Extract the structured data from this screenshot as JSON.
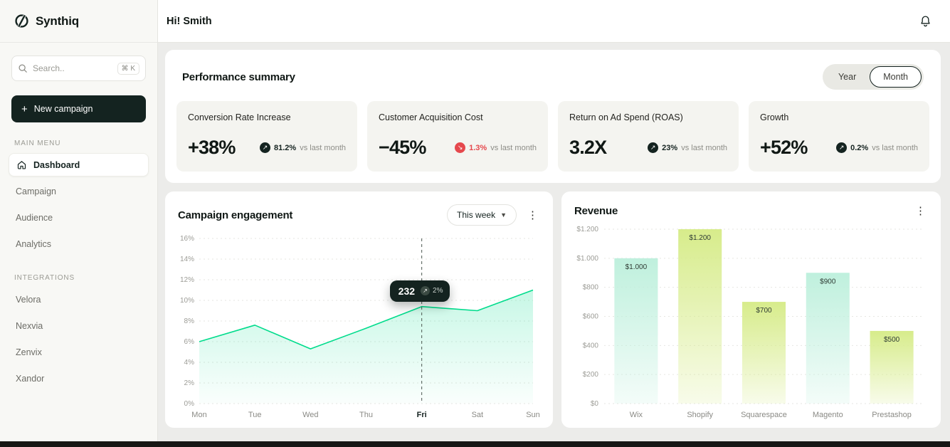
{
  "app": {
    "name": "Synthiq"
  },
  "colors": {
    "accent_green": "#00dc8c",
    "negative_red": "#e5484d",
    "dark": "#142320",
    "mint_bar": "#bff0dd",
    "lime_bar": "#d7ec8b",
    "grid": "#e6e6e2",
    "tick_text": "#9c9c96"
  },
  "header": {
    "greeting": "Hi! Smith"
  },
  "sidebar": {
    "search": {
      "placeholder": "Search..",
      "shortcut": "⌘ K"
    },
    "new_campaign_label": "New campaign",
    "sections": [
      {
        "title": "MAIN MENU",
        "items": [
          {
            "label": "Dashboard",
            "active": true
          },
          {
            "label": "Campaign"
          },
          {
            "label": "Audience"
          },
          {
            "label": "Analytics"
          }
        ]
      },
      {
        "title": "INTEGRATIONS",
        "items": [
          {
            "label": "Velora"
          },
          {
            "label": "Nexvia"
          },
          {
            "label": "Zenvix"
          },
          {
            "label": "Xandor"
          }
        ]
      }
    ]
  },
  "performance": {
    "title": "Performance summary",
    "toggle": {
      "year": "Year",
      "month": "Month",
      "selected": "Month"
    },
    "metrics": [
      {
        "label": "Conversion Rate Increase",
        "value": "+38%",
        "delta": "81.2%",
        "delta_dir": "up",
        "suffix": "vs last month"
      },
      {
        "label": "Customer Acquisition Cost",
        "value": "−45%",
        "delta": "1.3%",
        "delta_dir": "down",
        "suffix": "vs last month"
      },
      {
        "label": "Return on Ad Spend (ROAS)",
        "value": "3.2X",
        "delta": "23%",
        "delta_dir": "up",
        "suffix": "vs last month"
      },
      {
        "label": "Growth",
        "value": "+52%",
        "delta": "0.2%",
        "delta_dir": "up",
        "suffix": "vs last month"
      }
    ]
  },
  "engagement": {
    "title": "Campaign engagement",
    "range_label": "This week"
  },
  "revenue": {
    "title": "Revenue"
  },
  "chart_data": [
    {
      "type": "area",
      "title": "Campaign engagement",
      "x": [
        "Mon",
        "Tue",
        "Wed",
        "Thu",
        "Fri",
        "Sat",
        "Sun"
      ],
      "values": [
        6,
        7.6,
        5.3,
        7.3,
        9.4,
        9,
        11
      ],
      "ylim": [
        0,
        16
      ],
      "ytick_step": 2,
      "ytick_suffix": "%",
      "grid": "dashed",
      "tooltip": {
        "index": 4,
        "category": "Fri",
        "value": "232",
        "delta": "2%"
      }
    },
    {
      "type": "bar",
      "title": "Revenue",
      "categories": [
        "Wix",
        "Shopify",
        "Squarespace",
        "Magento",
        "Prestashop"
      ],
      "values": [
        1000,
        1200,
        700,
        900,
        500
      ],
      "bar_labels": [
        "$1.000",
        "$1.200",
        "$700",
        "$900",
        "$500"
      ],
      "bar_colors": [
        "mint",
        "lime",
        "lime",
        "mint",
        "lime"
      ],
      "ylim": [
        0,
        1200
      ],
      "ytick_labels": [
        "$0",
        "$200",
        "$400",
        "$600",
        "$800",
        "$1.000",
        "$1.200"
      ],
      "grid": "dashed"
    }
  ]
}
